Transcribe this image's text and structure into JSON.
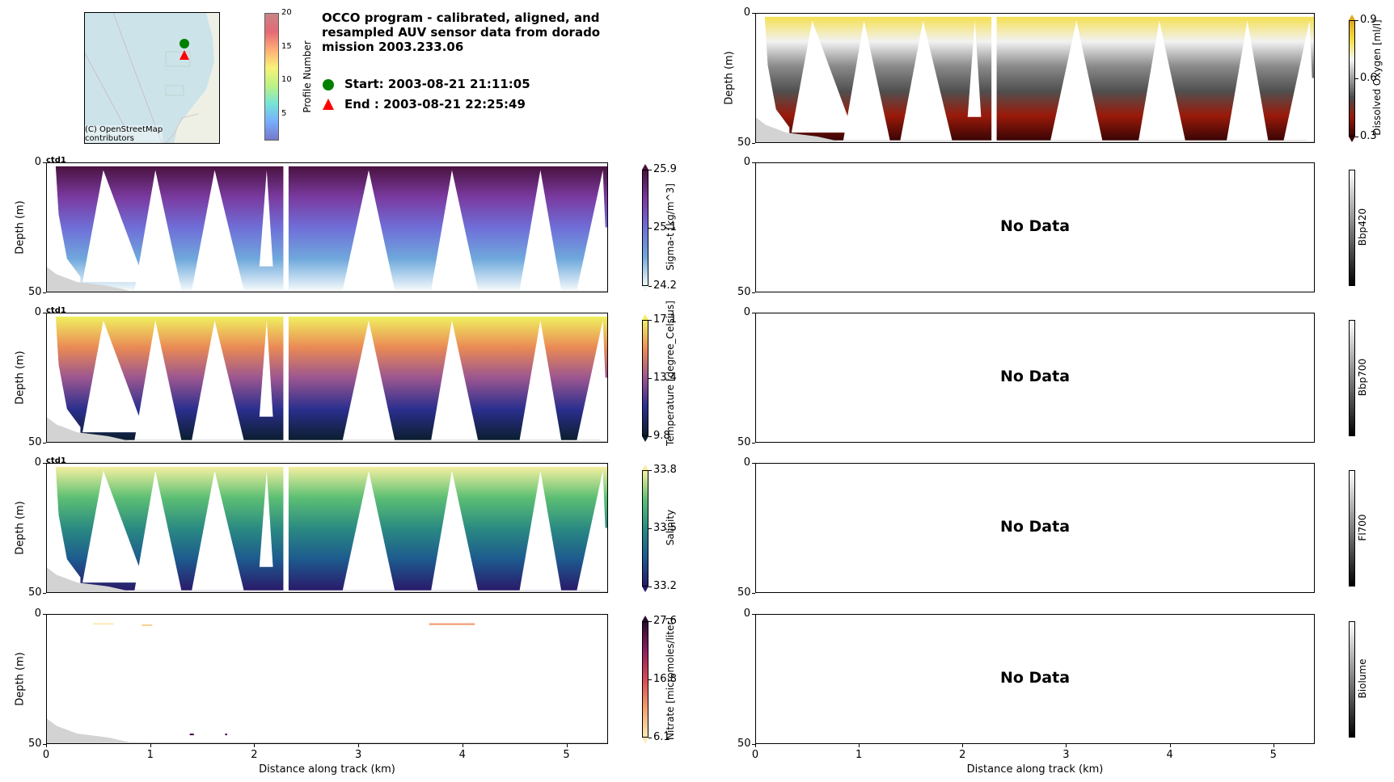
{
  "title": "OCCO program - calibrated, aligned, and\nresampled AUV sensor data from dorado\nmission 2003.233.06",
  "legend": {
    "start_label": "Start: 2003-08-21 21:11:05",
    "end_label": "End  : 2003-08-21 22:25:49",
    "start_color": "#008000",
    "end_color": "#ff0000"
  },
  "map": {
    "attribution": "(C) OpenStreetMap\ncontributors",
    "water_color": "#cde3ea",
    "profile_colorbar": {
      "label": "Profile Number",
      "ticks": [
        "5",
        "10",
        "15",
        "20"
      ],
      "range": [
        1,
        20
      ]
    }
  },
  "x_axis": {
    "label": "Distance along track (km)",
    "ticks": [
      "0",
      "1",
      "2",
      "3",
      "4",
      "5"
    ],
    "range": [
      0,
      5.4
    ]
  },
  "y_axis": {
    "label": "Depth (m)",
    "ticks": [
      "0",
      "50"
    ],
    "range": [
      0,
      50
    ]
  },
  "panels_left": [
    {
      "id": "sigma_t",
      "tag": "ctd1",
      "colorbar_label": "Sigma-t [kg/m^3]",
      "ticks": [
        "25.9",
        "25.1",
        "24.2"
      ],
      "range": [
        24.2,
        25.9
      ],
      "colors": [
        "#f0f8fa",
        "#6fa8dc",
        "#6f6fd8",
        "#7a3aa0",
        "#4a1240"
      ]
    },
    {
      "id": "temperature",
      "tag": "ctd1",
      "colorbar_label": "Temperature [degree_Celsius]",
      "ticks": [
        "17.1",
        "13.4",
        "9.8"
      ],
      "range": [
        9.8,
        17.1
      ],
      "colors": [
        "#0b1e2f",
        "#2b2f8e",
        "#9a5590",
        "#ea8a55",
        "#f0f060"
      ]
    },
    {
      "id": "salinity",
      "tag": "ctd1",
      "colorbar_label": "Salinity",
      "ticks": [
        "33.8",
        "33.5",
        "33.2"
      ],
      "range": [
        33.2,
        33.8
      ],
      "colors": [
        "#2a1a6a",
        "#1d5a8e",
        "#2a8a82",
        "#5cbf73",
        "#f5f0a0"
      ]
    },
    {
      "id": "nitrate",
      "tag": "",
      "colorbar_label": "Nitrate [micromoles/liter]",
      "ticks": [
        "27.6",
        "16.8",
        "6.1"
      ],
      "range": [
        6.1,
        27.6
      ],
      "colors": [
        "#fde9b5",
        "#f2a06a",
        "#d84a55",
        "#8a2060",
        "#2a0a30"
      ]
    }
  ],
  "panels_right": [
    {
      "id": "dissolved_oxygen",
      "colorbar_label": "Dissolved Oxygen [ml/l]",
      "ticks": [
        "0.9",
        "0.6",
        "0.3"
      ],
      "range": [
        0.3,
        0.9
      ],
      "has_data": true
    },
    {
      "id": "bbp420",
      "colorbar_label": "Bbp420",
      "has_data": false,
      "message": "No Data"
    },
    {
      "id": "bbp700",
      "colorbar_label": "Bbp700",
      "has_data": false,
      "message": "No Data"
    },
    {
      "id": "fl700",
      "colorbar_label": "Fl700",
      "has_data": false,
      "message": "No Data"
    },
    {
      "id": "biolume",
      "colorbar_label": "Biolume",
      "has_data": false,
      "message": "No Data"
    }
  ],
  "chart_data": {
    "type": "heatmap",
    "title": "OCCO program - calibrated, aligned, and resampled AUV sensor data from dorado mission 2003.233.06",
    "xlabel": "Distance along track (km)",
    "ylabel": "Depth (m)",
    "xlim": [
      0,
      5.4
    ],
    "ylim": [
      50,
      0
    ],
    "x_ticks": [
      0,
      1,
      2,
      3,
      4,
      5
    ],
    "y_ticks": [
      0,
      50
    ],
    "yo_yo_profile_bottom_turns_km": [
      0.55,
      1.05,
      1.6,
      2.1,
      2.25,
      3.1,
      3.9,
      4.75,
      5.35
    ],
    "yo_yo_profile_top_turns_km": [
      0.55,
      1.1,
      1.65,
      2.2,
      2.3,
      3.7,
      4.4,
      5.1
    ],
    "bathymetry_shading_km": [
      0,
      0.8
    ],
    "series": [
      {
        "name": "Sigma-t [kg/m^3]",
        "range": [
          24.2,
          25.9
        ],
        "surface_value": 24.6,
        "bottom_value": 25.9
      },
      {
        "name": "Temperature [degree_Celsius]",
        "range": [
          9.8,
          17.1
        ],
        "surface_value": 15.5,
        "bottom_value": 9.8
      },
      {
        "name": "Salinity",
        "range": [
          33.2,
          33.8
        ],
        "surface_value": 33.45,
        "mid_min_value": 33.25,
        "bottom_value": 33.7
      },
      {
        "name": "Nitrate [micromoles/liter]",
        "range": [
          6.1,
          27.6
        ],
        "note": "sparse near-surface values ~6-14 at 0.5-1.0 km and 3.7-4.1 km"
      },
      {
        "name": "Dissolved Oxygen [ml/l]",
        "range": [
          0.3,
          0.9
        ],
        "surface_value": 0.85,
        "bottom_value": 0.35
      },
      {
        "name": "Bbp420",
        "values": []
      },
      {
        "name": "Bbp700",
        "values": []
      },
      {
        "name": "Fl700",
        "values": []
      },
      {
        "name": "Biolume",
        "values": []
      }
    ]
  }
}
